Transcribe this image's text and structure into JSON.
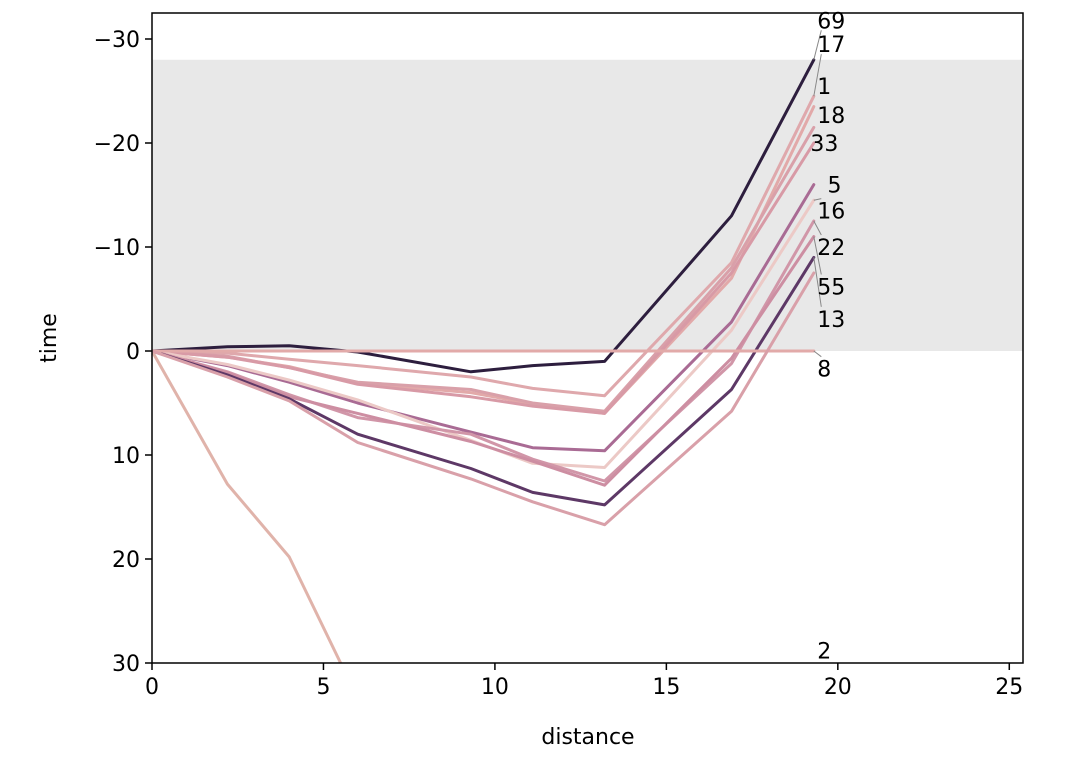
{
  "chart_data": {
    "type": "line",
    "xlabel": "distance",
    "ylabel": "time",
    "xlim": [
      0,
      25.4
    ],
    "ylim": [
      30,
      -32.5
    ],
    "y_inverted": true,
    "grid": false,
    "xticks": [
      0,
      5,
      10,
      15,
      20,
      25
    ],
    "yticks": [
      -30,
      -20,
      -10,
      0,
      10,
      20,
      30
    ],
    "xtick_labels": [
      "0",
      "5",
      "10",
      "15",
      "20",
      "25"
    ],
    "ytick_labels": [
      "−30",
      "−20",
      "−10",
      "0",
      "10",
      "20",
      "30"
    ],
    "shaded_band": {
      "y_from": -28,
      "y_to": 0,
      "color": "#e8e8e8"
    },
    "series": [
      {
        "name": "69",
        "color": "#2d1e3e",
        "x": [
          0,
          2.2,
          4,
          6,
          9.3,
          11.1,
          13.2,
          16.9,
          19.3
        ],
        "y": [
          0,
          -0.4,
          -0.5,
          0.1,
          2.0,
          1.4,
          1.0,
          -13.0,
          -28.0
        ]
      },
      {
        "name": "17",
        "color": "#dfa8ac",
        "x": [
          0,
          2.2,
          4,
          6,
          9.3,
          11.1,
          13.2,
          16.9,
          19.3
        ],
        "y": [
          0,
          0.2,
          0.8,
          1.4,
          2.5,
          3.6,
          4.3,
          -8.5,
          -24.5
        ]
      },
      {
        "name": "1",
        "color": "#e2a9a9",
        "x": [
          0,
          2.2,
          4,
          6,
          9.3,
          11.1,
          13.2,
          16.9,
          19.3
        ],
        "y": [
          0,
          0.6,
          1.5,
          3.1,
          4.0,
          5.1,
          6.0,
          -7.0,
          -23.5
        ]
      },
      {
        "name": "18",
        "color": "#d9a0a9",
        "x": [
          0,
          2.2,
          4,
          6,
          9.3,
          11.1,
          13.2,
          16.9,
          19.3
        ],
        "y": [
          0,
          0.5,
          1.6,
          3.0,
          3.7,
          5.0,
          5.8,
          -8.0,
          -21.5
        ]
      },
      {
        "name": "33",
        "color": "#d89aa6",
        "x": [
          0,
          2.2,
          4,
          6,
          9.3,
          11.1,
          13.2,
          16.9,
          19.3
        ],
        "y": [
          0,
          0.6,
          1.6,
          3.2,
          4.4,
          5.3,
          6.0,
          -7.5,
          -20.0
        ]
      },
      {
        "name": "5",
        "color": "#a96b94",
        "x": [
          0,
          2.2,
          4,
          6,
          9.3,
          11.1,
          13.2,
          16.9,
          19.3
        ],
        "y": [
          0,
          1.4,
          3.0,
          5.0,
          7.8,
          9.3,
          9.6,
          -2.8,
          -16.0
        ]
      },
      {
        "name": "16",
        "color": "#ecc9c6",
        "x": [
          0,
          2.2,
          4,
          6,
          9.3,
          11.1,
          13.2,
          16.9,
          19.3
        ],
        "y": [
          0,
          1.3,
          2.8,
          4.7,
          8.6,
          10.8,
          11.2,
          -2.0,
          -14.5
        ]
      },
      {
        "name": "22",
        "color": "#d196a8",
        "x": [
          0,
          2.2,
          4,
          6,
          9.3,
          11.1,
          13.2,
          16.9,
          19.3
        ],
        "y": [
          0,
          2.0,
          4.2,
          6.4,
          8.0,
          10.4,
          12.5,
          1.2,
          -12.5
        ]
      },
      {
        "name": "55",
        "color": "#cd8ea2",
        "x": [
          0,
          2.2,
          4,
          6,
          9.3,
          11.1,
          13.2,
          16.9,
          19.3
        ],
        "y": [
          0,
          2.1,
          4.4,
          6.0,
          8.7,
          10.6,
          12.9,
          0.7,
          -11.0
        ]
      },
      {
        "name": "13",
        "color": "#5d3866",
        "x": [
          0,
          2.2,
          4,
          6,
          9.3,
          11.1,
          13.2,
          16.9,
          19.3
        ],
        "y": [
          0,
          2.3,
          4.6,
          8.0,
          11.3,
          13.6,
          14.8,
          3.7,
          -9.0
        ]
      },
      {
        "name": "8",
        "color": "#e2aaa9",
        "x": [
          0,
          19.3
        ],
        "y": [
          0,
          0
        ]
      },
      {
        "name": "2",
        "color": "#e0b3aa",
        "x": [
          0,
          2.2,
          4,
          5.5
        ],
        "y": [
          0,
          12.8,
          19.8,
          30
        ]
      },
      {
        "name": "",
        "color": "#d9a0a9",
        "x": [
          0,
          2.2,
          4,
          6,
          9.3,
          11.1,
          13.2,
          16.9,
          19.3
        ],
        "y": [
          0,
          2.5,
          4.8,
          8.8,
          12.3,
          14.5,
          16.7,
          5.8,
          -7.5
        ]
      }
    ],
    "end_labels": [
      {
        "text": "69",
        "x": 19.4,
        "y": -31.8
      },
      {
        "text": "17",
        "x": 19.4,
        "y": -29.5
      },
      {
        "text": "1",
        "x": 19.4,
        "y": -25.5
      },
      {
        "text": "18",
        "x": 19.4,
        "y": -22.7
      },
      {
        "text": "33",
        "x": 19.2,
        "y": -20.0
      },
      {
        "text": "5",
        "x": 19.7,
        "y": -16.0
      },
      {
        "text": "16",
        "x": 19.4,
        "y": -13.5
      },
      {
        "text": "22",
        "x": 19.4,
        "y": -10.0
      },
      {
        "text": "55",
        "x": 19.4,
        "y": -6.2
      },
      {
        "text": "13",
        "x": 19.4,
        "y": -3.1
      },
      {
        "text": "8",
        "x": 19.4,
        "y": 1.7
      },
      {
        "text": "2",
        "x": 19.4,
        "y": 28.8
      }
    ]
  }
}
